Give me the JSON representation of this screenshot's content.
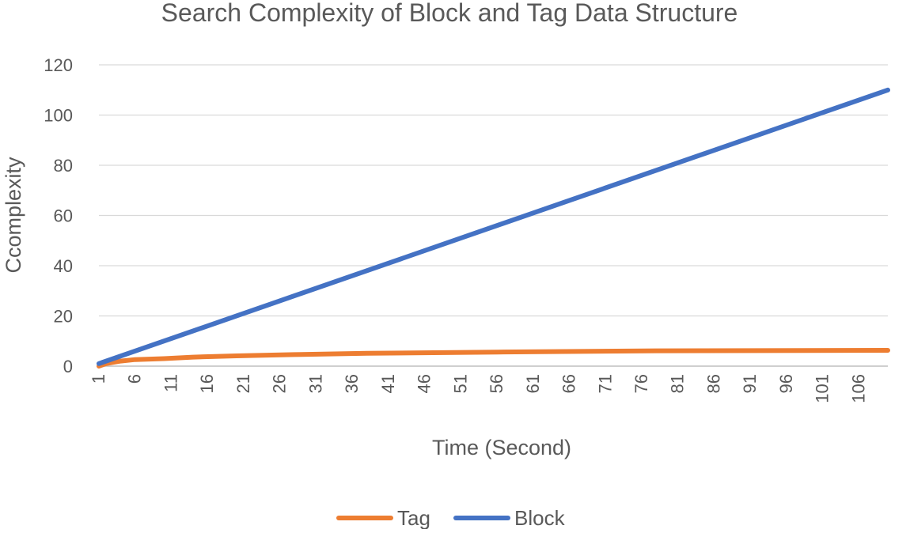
{
  "chart_data": {
    "type": "line",
    "title": "Search Complexity of Block and Tag Data Structure",
    "xlabel": "Time (Second)",
    "ylabel": "Ccomplexity",
    "ylim": [
      0,
      120
    ],
    "yticks": [
      0,
      20,
      40,
      60,
      80,
      100,
      120
    ],
    "x_range": [
      1,
      110
    ],
    "xticks": [
      1,
      6,
      11,
      16,
      21,
      26,
      31,
      36,
      41,
      46,
      51,
      56,
      61,
      66,
      71,
      76,
      81,
      86,
      91,
      96,
      101,
      106
    ],
    "grid": true,
    "legend_position": "bottom",
    "series": [
      {
        "name": "Tag",
        "color": "#ed7d31",
        "points": [
          [
            1,
            0
          ],
          [
            2,
            1
          ],
          [
            4,
            2
          ],
          [
            6,
            2.6
          ],
          [
            10,
            3
          ],
          [
            14,
            3.6
          ],
          [
            20,
            4.1
          ],
          [
            28,
            4.6
          ],
          [
            38,
            5.1
          ],
          [
            56,
            5.6
          ],
          [
            78,
            6.1
          ],
          [
            110,
            6.3
          ]
        ]
      },
      {
        "name": "Block",
        "color": "#4472c4",
        "points": [
          [
            1,
            1
          ],
          [
            110,
            110
          ]
        ]
      }
    ]
  }
}
